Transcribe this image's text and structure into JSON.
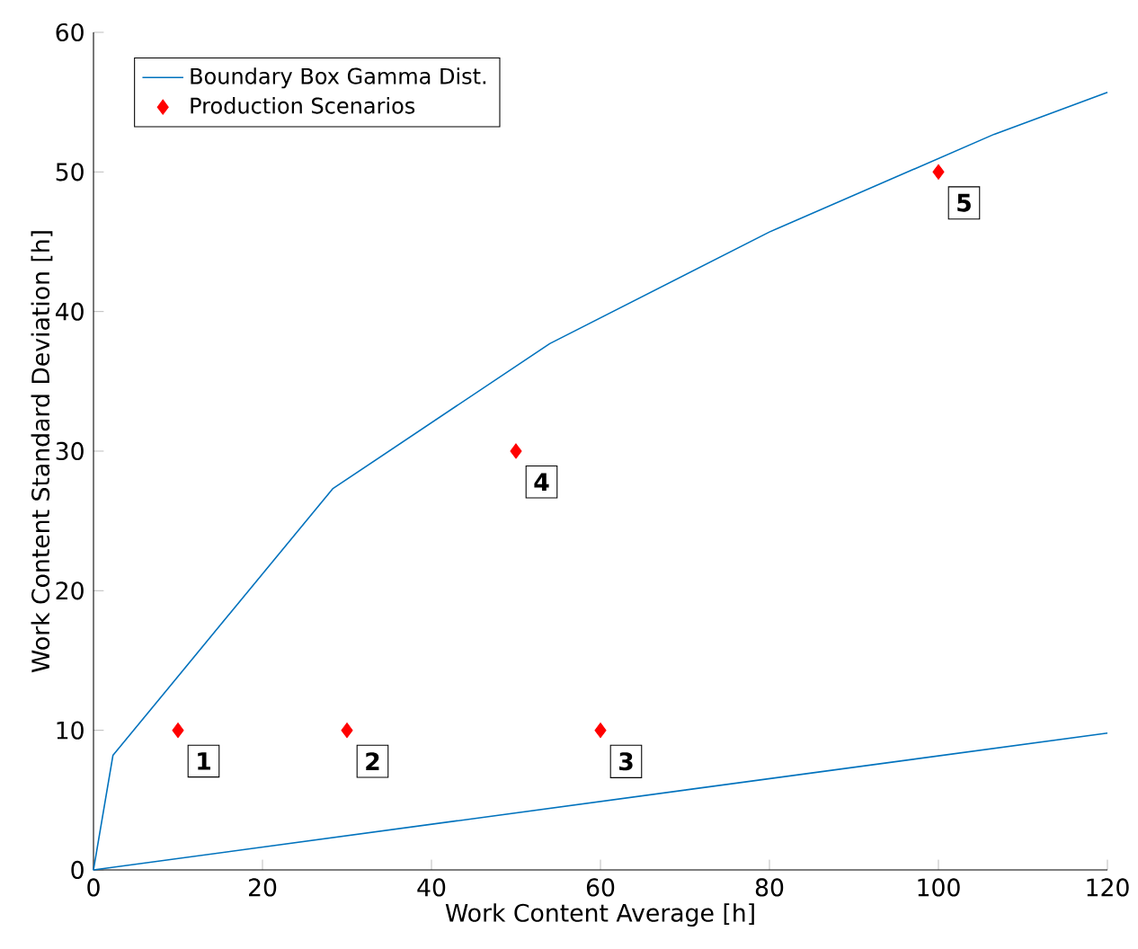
{
  "chart_data": {
    "type": "line",
    "xlabel": "Work Content Average [h]",
    "ylabel": "Work Content Standard Deviation [h]",
    "xlim": [
      0,
      120
    ],
    "ylim": [
      0,
      60
    ],
    "xticks": [
      0,
      20,
      40,
      60,
      80,
      100,
      120
    ],
    "yticks": [
      0,
      10,
      20,
      30,
      40,
      50,
      60
    ],
    "legend": "top left",
    "series": [
      {
        "name": "Boundary Box Gamma Dist.",
        "color": "#0072bd",
        "marker": "none",
        "line_style": "solid",
        "x": [
          120,
          106.6,
          80,
          54,
          28.3,
          2.3,
          0,
          120
        ],
        "values": [
          55.7,
          52.7,
          45.7,
          37.7,
          27.3,
          8.2,
          0,
          9.8
        ]
      },
      {
        "name": "Production Scenarios",
        "type": "scatter",
        "color": "#ff0000",
        "marker": "diamond",
        "x": [
          10,
          30,
          60,
          50,
          100
        ],
        "values": [
          10,
          10,
          10,
          30,
          50
        ]
      }
    ],
    "annotations": [
      {
        "text": "1",
        "x": 10,
        "y": 10
      },
      {
        "text": "2",
        "x": 30,
        "y": 10
      },
      {
        "text": "3",
        "x": 60,
        "y": 10
      },
      {
        "text": "4",
        "x": 50,
        "y": 30
      },
      {
        "text": "5",
        "x": 100,
        "y": 50
      }
    ]
  }
}
